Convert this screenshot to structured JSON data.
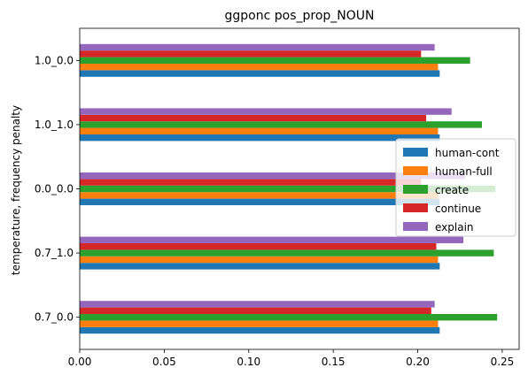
{
  "chart_data": {
    "type": "bar",
    "orientation": "horizontal",
    "title": "ggponc pos_prop_NOUN",
    "xlabel": "",
    "ylabel": "temperature, frequency penalty",
    "categories": [
      "0.7_0.0",
      "0.7_1.0",
      "0.0_0.0",
      "1.0_1.0",
      "1.0_0.0"
    ],
    "xlim": [
      0,
      0.26
    ],
    "xticks": [
      "0.00",
      "0.05",
      "0.10",
      "0.15",
      "0.20",
      "0.25"
    ],
    "xtick_values": [
      0,
      0.05,
      0.1,
      0.15,
      0.2,
      0.25
    ],
    "legend_position": "center-right",
    "grid": false,
    "series": [
      {
        "name": "human-cont",
        "color": "#1f77b4",
        "values": [
          0.213,
          0.213,
          0.213,
          0.213,
          0.213
        ]
      },
      {
        "name": "human-full",
        "color": "#ff7f0e",
        "values": [
          0.212,
          0.212,
          0.212,
          0.212,
          0.212
        ]
      },
      {
        "name": "create",
        "color": "#2ca02c",
        "values": [
          0.247,
          0.245,
          0.246,
          0.238,
          0.231
        ]
      },
      {
        "name": "continue",
        "color": "#d62728",
        "values": [
          0.208,
          0.211,
          0.202,
          0.205,
          0.202
        ]
      },
      {
        "name": "explain",
        "color": "#9467bd",
        "values": [
          0.21,
          0.227,
          0.228,
          0.22,
          0.21
        ]
      }
    ]
  }
}
